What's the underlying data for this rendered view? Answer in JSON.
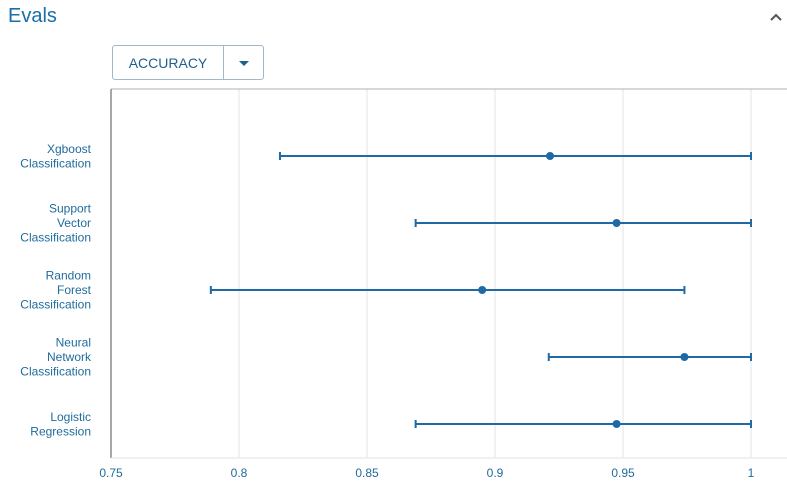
{
  "header": {
    "title": "Evals"
  },
  "metric_select": {
    "selected": "ACCURACY"
  },
  "colors": {
    "accent": "#1a6fa8",
    "series": "#1f6aa5",
    "grid": "#e3e3e3",
    "axis": "#b0b0b0"
  },
  "icons": {
    "collapse": "chevron-up-icon",
    "dropdown": "caret-down-icon"
  },
  "chart_data": {
    "type": "errorbar",
    "orientation": "horizontal",
    "title": "",
    "xlabel": "",
    "ylabel": "",
    "xlim": [
      0.75,
      1.0
    ],
    "xticks": [
      {
        "value": 0.75,
        "label": "0.75"
      },
      {
        "value": 0.8,
        "label": "0.8"
      },
      {
        "value": 0.85,
        "label": "0.85"
      },
      {
        "value": 0.9,
        "label": "0.9"
      },
      {
        "value": 0.95,
        "label": "0.95"
      },
      {
        "value": 1.0,
        "label": "1"
      }
    ],
    "grid": true,
    "categories": [
      {
        "label_lines": [
          "Xgboost",
          "Classification"
        ],
        "value": 0.9215,
        "low": 0.816,
        "high": 1.0
      },
      {
        "label_lines": [
          "Support",
          "Vector",
          "Classification"
        ],
        "value": 0.9475,
        "low": 0.869,
        "high": 1.0
      },
      {
        "label_lines": [
          "Random",
          "Forest",
          "Classification"
        ],
        "value": 0.895,
        "low": 0.789,
        "high": 0.974
      },
      {
        "label_lines": [
          "Neural",
          "Network",
          "Classification"
        ],
        "value": 0.974,
        "low": 0.921,
        "high": 1.0
      },
      {
        "label_lines": [
          "Logistic",
          "Regression"
        ],
        "value": 0.9475,
        "low": 0.869,
        "high": 1.0
      }
    ]
  }
}
